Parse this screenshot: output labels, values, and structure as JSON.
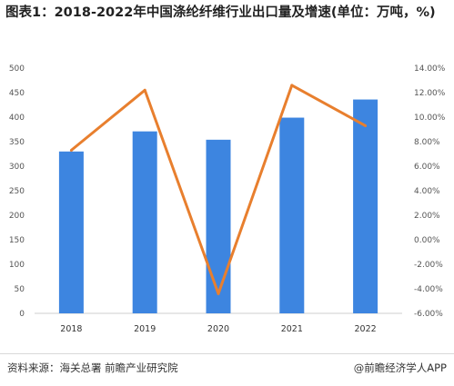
{
  "chart_data": {
    "type": "bar",
    "title": "图表1：2018-2022年中国涤纶纤维行业出口量及增速(单位：万吨，%)",
    "categories": [
      "2018",
      "2019",
      "2020",
      "2021",
      "2022"
    ],
    "series": [
      {
        "kind": "bar",
        "axis": "left",
        "values": [
          330,
          371,
          354,
          399,
          436
        ],
        "color": "#3d85e0"
      },
      {
        "kind": "line",
        "axis": "right",
        "values": [
          7.3,
          12.2,
          -4.4,
          12.6,
          9.3
        ],
        "color": "#e87f2e"
      }
    ],
    "ylim": [
      0,
      500
    ],
    "yticks": [
      0,
      50,
      100,
      150,
      200,
      250,
      300,
      350,
      400,
      450,
      500
    ],
    "y2lim": [
      -6,
      14
    ],
    "y2ticks": [
      "-6.00%",
      "-4.00%",
      "-2.00%",
      "0.00%",
      "2.00%",
      "4.00%",
      "6.00%",
      "8.00%",
      "10.00%",
      "12.00%",
      "14.00%"
    ],
    "grid": false,
    "legend": "none"
  },
  "footer": {
    "source": "资料来源：海关总署 前瞻产业研究院",
    "brand": "@前瞻经济学人APP"
  }
}
